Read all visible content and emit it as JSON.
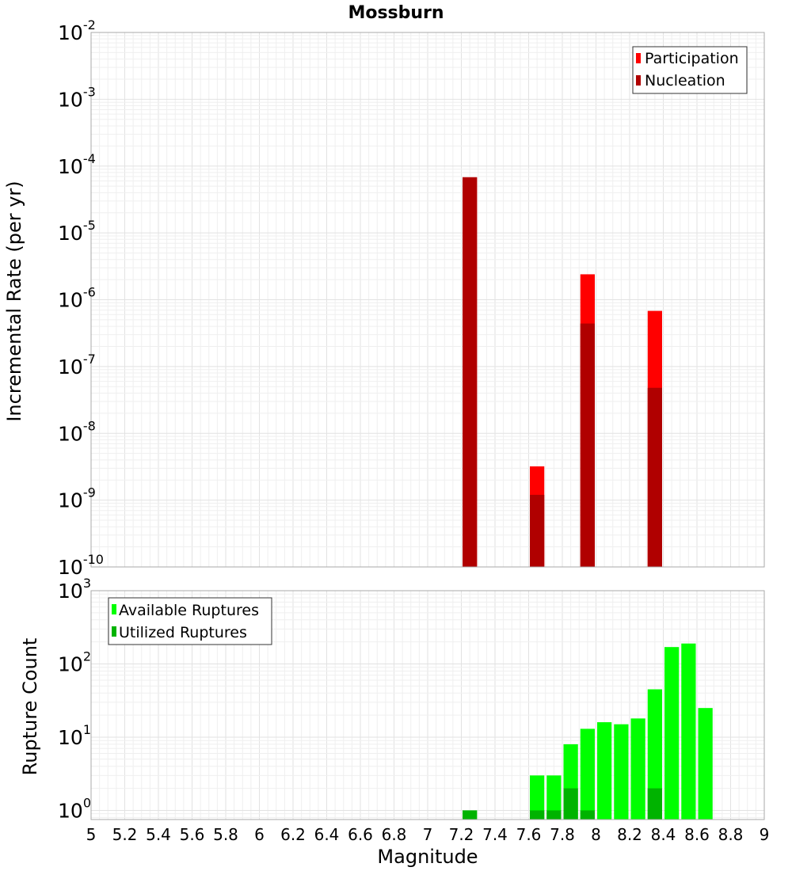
{
  "title": "Mossburn",
  "xlabel": "Magnitude",
  "x_ticks": [
    "5",
    "5.2",
    "5.4",
    "5.6",
    "5.8",
    "6",
    "6.2",
    "6.4",
    "6.6",
    "6.8",
    "7",
    "7.2",
    "7.4",
    "7.6",
    "7.8",
    "8",
    "8.2",
    "8.4",
    "8.6",
    "8.8",
    "9"
  ],
  "colors": {
    "participation": "#ff0000",
    "nucleation": "#b00000",
    "available": "#00ff00",
    "utilized": "#00b300"
  },
  "chart_data": [
    {
      "type": "bar",
      "ylabel": "Incremental Rate (per yr)",
      "xlim": [
        5,
        9
      ],
      "ylim": [
        1e-10,
        0.01
      ],
      "yscale": "log",
      "y_ticks": [
        {
          "base": "10",
          "exp": "-10",
          "value": 1e-10
        },
        {
          "base": "10",
          "exp": "-9",
          "value": 1e-09
        },
        {
          "base": "10",
          "exp": "-8",
          "value": 1e-08
        },
        {
          "base": "10",
          "exp": "-7",
          "value": 1e-07
        },
        {
          "base": "10",
          "exp": "-6",
          "value": 1e-06
        },
        {
          "base": "10",
          "exp": "-5",
          "value": 1e-05
        },
        {
          "base": "10",
          "exp": "-4",
          "value": 0.0001
        },
        {
          "base": "10",
          "exp": "-3",
          "value": 0.001
        },
        {
          "base": "10",
          "exp": "-2",
          "value": 0.01
        }
      ],
      "grid": true,
      "legend_position": "top-right",
      "series": [
        {
          "name": "Participation",
          "x": [
            7.25,
            7.65,
            7.95,
            8.35
          ],
          "values": [
            6.8e-05,
            3.2e-09,
            2.4e-06,
            6.8e-07
          ]
        },
        {
          "name": "Nucleation",
          "x": [
            7.25,
            7.65,
            7.95,
            8.35
          ],
          "values": [
            6.8e-05,
            1.2e-09,
            4.4e-07,
            4.8e-08
          ]
        }
      ]
    },
    {
      "type": "bar",
      "ylabel": "Rupture Count",
      "xlim": [
        5,
        9
      ],
      "ylim": [
        0.75,
        1000
      ],
      "yscale": "log",
      "y_ticks": [
        {
          "base": "10",
          "exp": "0",
          "value": 1
        },
        {
          "base": "10",
          "exp": "1",
          "value": 10
        },
        {
          "base": "10",
          "exp": "2",
          "value": 100
        },
        {
          "base": "10",
          "exp": "3",
          "value": 1000
        }
      ],
      "grid": true,
      "legend_position": "top-left",
      "series": [
        {
          "name": "Available Ruptures",
          "x": [
            7.25,
            7.65,
            7.75,
            7.85,
            7.95,
            8.05,
            8.15,
            8.25,
            8.35,
            8.45,
            8.55,
            8.65
          ],
          "values": [
            1,
            3,
            3,
            8,
            13,
            16,
            15,
            18,
            45,
            170,
            190,
            25
          ]
        },
        {
          "name": "Utilized Ruptures",
          "x": [
            7.25,
            7.65,
            7.75,
            7.85,
            7.95,
            8.35
          ],
          "values": [
            1,
            1,
            1,
            2,
            1,
            2
          ]
        }
      ]
    }
  ]
}
